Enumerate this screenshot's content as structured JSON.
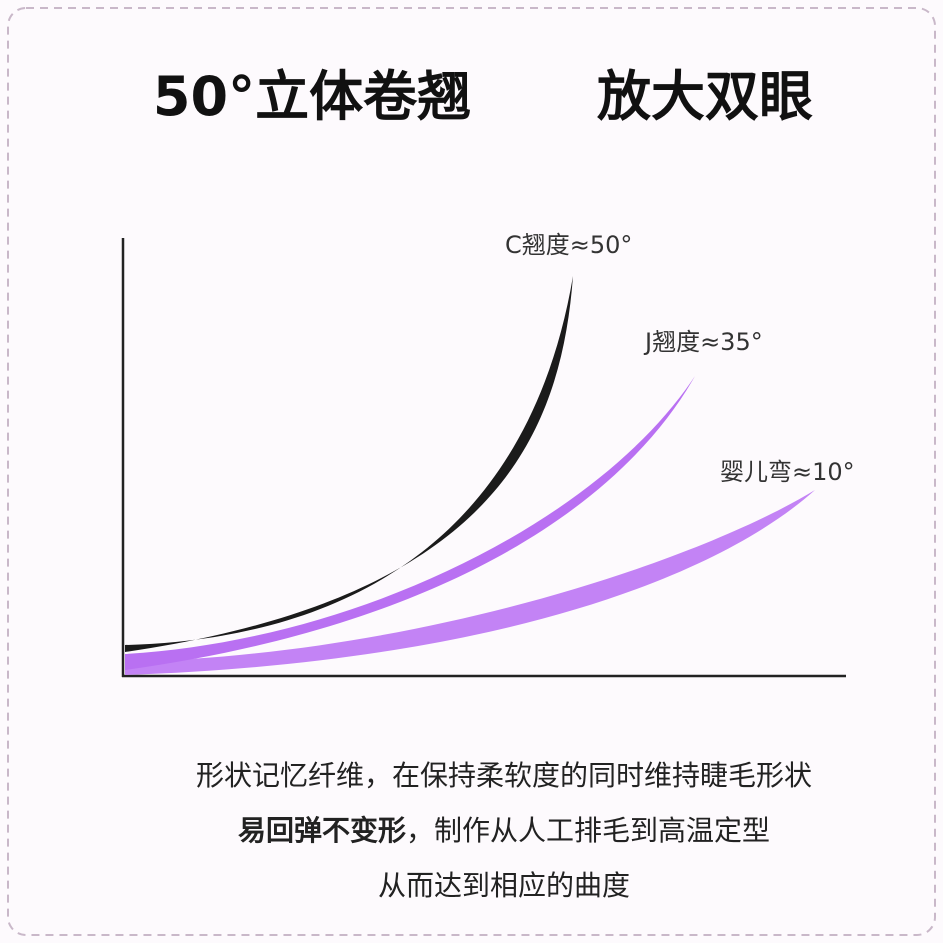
{
  "header": {
    "title": "50°立体卷翘",
    "subtitle": "放大双眼"
  },
  "curves": [
    {
      "label": "C翘度≈50°"
    },
    {
      "label": "J翘度≈35°"
    },
    {
      "label": "婴儿弯≈10°"
    }
  ],
  "body": {
    "line1": "形状记忆纤维，在保持柔软度的同时维持睫毛形状",
    "line2_bold": "易回弹不变形",
    "line2_rest": "，制作从人工排毛到高温定型",
    "line3": "从而达到相应的曲度"
  }
}
